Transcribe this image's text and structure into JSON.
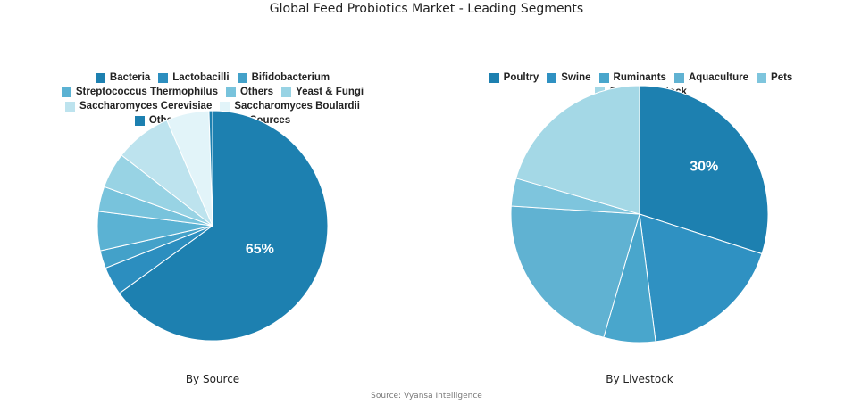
{
  "title": "Global Feed Probiotics Market - Leading Segments",
  "source_note": "Source: Vyansa Intelligence",
  "chart_data": [
    {
      "type": "pie",
      "subtitle": "By Source",
      "labels": [
        "Bacteria",
        "Lactobacilli",
        "Bifidobacterium",
        "Streptococcus Thermophilus",
        "Others",
        "Yeast & Fungi",
        "Saccharomyces Cerevisiae",
        "Saccharomyces Boulardii",
        "Other Yeast & Fungi Sources"
      ],
      "values": [
        65,
        4,
        2.5,
        5.5,
        3.5,
        5,
        8,
        6,
        0.5
      ],
      "colors": [
        "#1d80b0",
        "#2c8ebf",
        "#43a1c9",
        "#5bb2d3",
        "#78c3dc",
        "#98d3e4",
        "#bde3ee",
        "#e2f4f9",
        "#1d80b0"
      ],
      "data_labels": [
        "65%",
        "",
        "",
        "",
        "",
        "",
        "",
        "",
        ""
      ]
    },
    {
      "type": "pie",
      "subtitle": "By Livestock",
      "labels": [
        "Poultry",
        "Swine",
        "Ruminants",
        "Aquaculture",
        "Pets",
        "Other Livestock"
      ],
      "values": [
        30,
        18,
        6.5,
        21.5,
        3.5,
        20.5
      ],
      "colors": [
        "#1d80b0",
        "#2f91c2",
        "#49a6cc",
        "#60b2d2",
        "#7ec5dd",
        "#a4d8e6"
      ],
      "data_labels": [
        "30%",
        "",
        "",
        "",
        "",
        ""
      ]
    }
  ]
}
